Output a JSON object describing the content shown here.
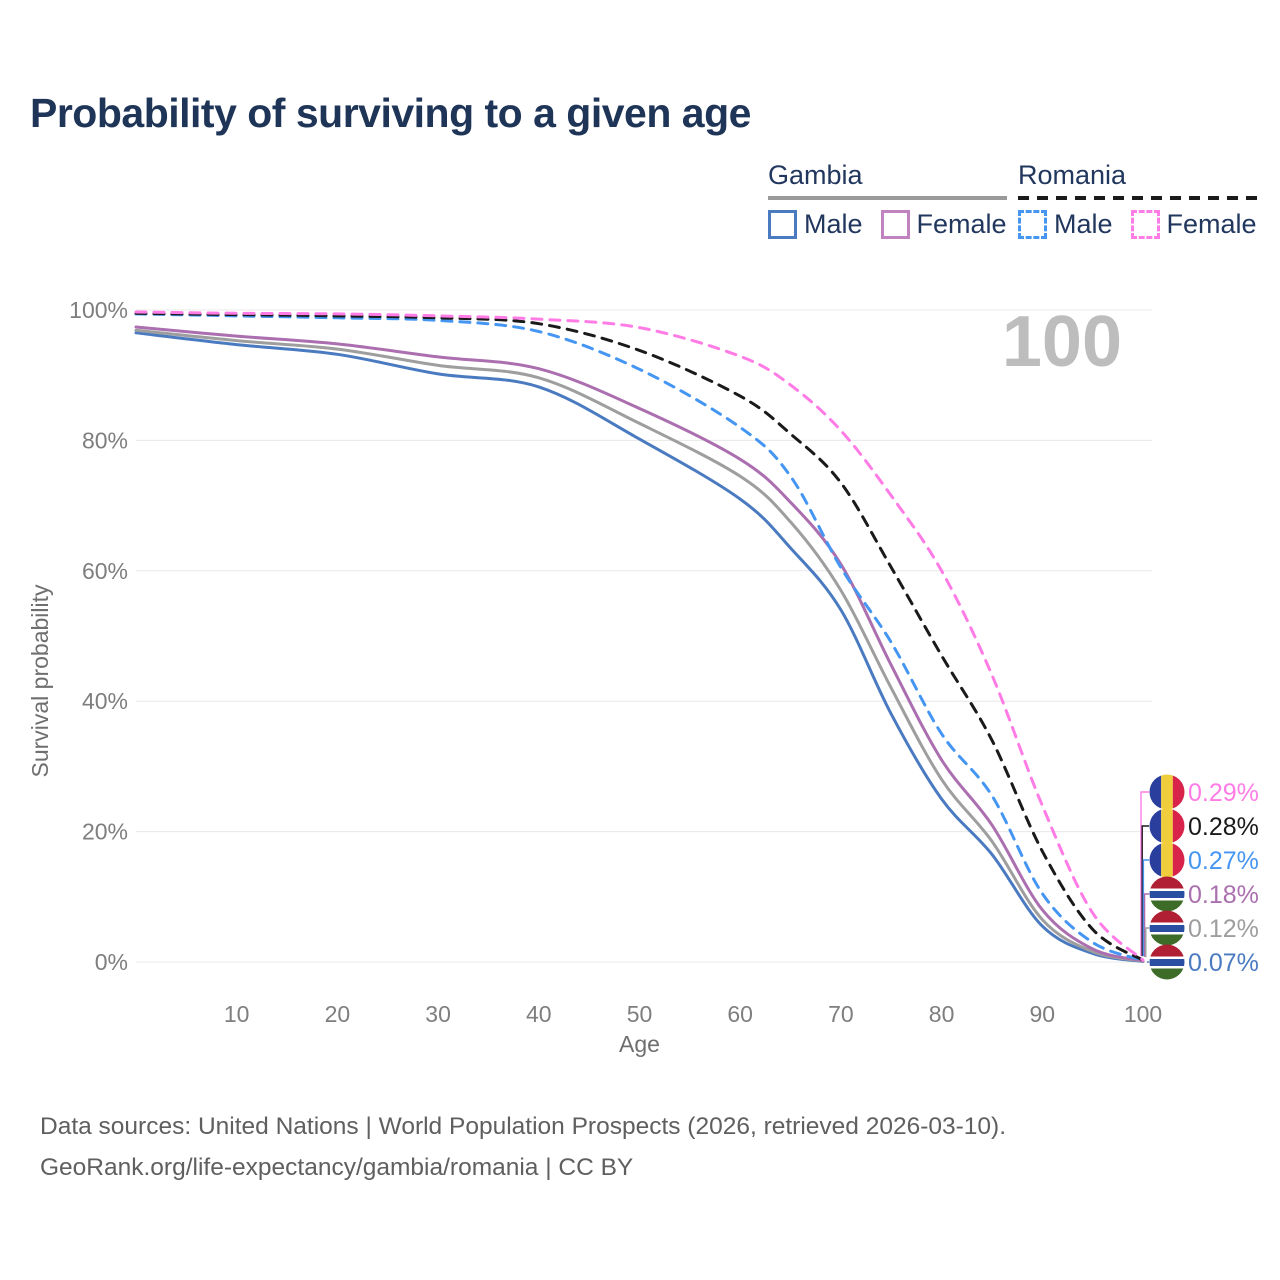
{
  "page": {
    "title": "Probability of surviving to a given age"
  },
  "legend": {
    "groups": [
      {
        "name": "Gambia",
        "style": "solid",
        "color": "#9a9a9a",
        "items": [
          {
            "label": "Male",
            "color": "#4a7ac0",
            "dashed": false
          },
          {
            "label": "Female",
            "color": "#c183bf",
            "dashed": false
          }
        ]
      },
      {
        "name": "Romania",
        "style": "dashed",
        "color": "#1a1a1a",
        "items": [
          {
            "label": "Male",
            "color": "#4596f2",
            "dashed": true
          },
          {
            "label": "Female",
            "color": "#ff7ce6",
            "dashed": true
          }
        ]
      }
    ]
  },
  "chart_data": {
    "type": "line",
    "title": "Probability of surviving to a given age",
    "xlabel": "Age",
    "ylabel": "Survival probability",
    "xlim": [
      0,
      100
    ],
    "ylim": [
      0,
      100
    ],
    "grid": "horizontal",
    "legend_position": "top-right",
    "watermark": "100",
    "x_ticks": [
      10,
      20,
      30,
      40,
      50,
      60,
      70,
      80,
      90,
      100
    ],
    "y_ticks": [
      {
        "value": 0,
        "label": "0%"
      },
      {
        "value": 20,
        "label": "20%"
      },
      {
        "value": 40,
        "label": "40%"
      },
      {
        "value": 60,
        "label": "60%"
      },
      {
        "value": 80,
        "label": "80%"
      },
      {
        "value": 100,
        "label": "100%"
      }
    ],
    "x": [
      0,
      10,
      20,
      30,
      40,
      50,
      60,
      65,
      70,
      75,
      80,
      85,
      90,
      95,
      100
    ],
    "series": [
      {
        "name": "Romania Female",
        "country": "Romania",
        "flag": "romania",
        "color": "#ff7ce6",
        "line_style": "dashed",
        "end_label": "0.29%",
        "values": [
          99.7,
          99.5,
          99.4,
          99.1,
          98.6,
          97.3,
          92.9,
          88.5,
          81.5,
          71.5,
          60.0,
          44.0,
          24.0,
          7.5,
          0.29
        ]
      },
      {
        "name": "Romania",
        "country": "Romania",
        "flag": "romania",
        "color": "#1a1a1a",
        "line_style": "dashed",
        "end_label": "0.28%",
        "values": [
          99.5,
          99.3,
          99.1,
          98.8,
          97.9,
          93.8,
          86.8,
          81.0,
          73.5,
          60.5,
          47.0,
          34.0,
          17.0,
          5.0,
          0.28
        ]
      },
      {
        "name": "Romania Male",
        "country": "Romania",
        "flag": "romania",
        "color": "#4596f2",
        "line_style": "dashed",
        "end_label": "0.27%",
        "values": [
          99.4,
          99.1,
          98.8,
          98.4,
          96.7,
          90.9,
          82.0,
          74.5,
          60.5,
          49.0,
          35.0,
          25.5,
          10.5,
          3.0,
          0.27
        ]
      },
      {
        "name": "Gambia Female",
        "country": "Gambia",
        "flag": "gambia",
        "color": "#ab6fb0",
        "line_style": "solid",
        "end_label": "0.18%",
        "values": [
          97.4,
          96.0,
          94.8,
          92.8,
          91.0,
          84.9,
          77.1,
          70.5,
          61.0,
          45.5,
          31.0,
          21.0,
          8.0,
          2.0,
          0.18
        ]
      },
      {
        "name": "Gambia",
        "country": "Gambia",
        "flag": "gambia",
        "color": "#9e9e9e",
        "line_style": "solid",
        "end_label": "0.12%",
        "values": [
          96.9,
          95.3,
          94.0,
          91.5,
          89.6,
          82.6,
          74.5,
          67.5,
          57.0,
          42.0,
          28.0,
          18.5,
          6.5,
          1.6,
          0.12
        ]
      },
      {
        "name": "Gambia Male",
        "country": "Gambia",
        "flag": "gambia",
        "color": "#4a7ac0",
        "line_style": "solid",
        "end_label": "0.07%",
        "values": [
          96.5,
          94.7,
          93.2,
          90.2,
          88.2,
          80.2,
          71.0,
          63.5,
          54.0,
          38.0,
          25.0,
          16.5,
          5.5,
          1.3,
          0.07
        ]
      }
    ]
  },
  "footer": {
    "line1": "Data sources: United Nations | World Population Prospects (2026, retrieved 2026-03-10).",
    "line2": "GeoRank.org/life-expectancy/gambia/romania | CC BY"
  }
}
